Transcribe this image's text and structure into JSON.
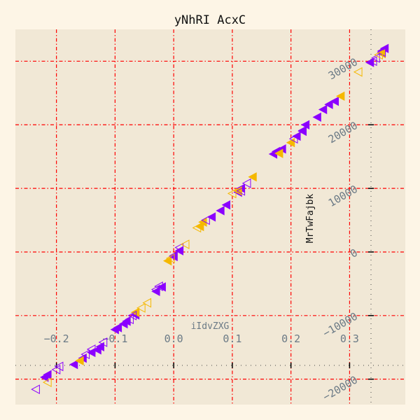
{
  "chart_data": {
    "type": "scatter",
    "title": "yNhRI AcxC",
    "xlabel": "iIdvZXG",
    "ylabel": "MrTwFajbk",
    "xlim": [
      -0.27,
      0.395
    ],
    "ylim": [
      -24000,
      35000
    ],
    "xticks": [
      -0.2,
      -0.1,
      0.0,
      0.1,
      0.2,
      0.3
    ],
    "xtick_labels": [
      "−0.2",
      "−0.1",
      "0.0",
      "0.1",
      "0.2",
      "0.3"
    ],
    "yticks": [
      -20000,
      -10000,
      0,
      10000,
      20000,
      30000
    ],
    "ytick_labels": [
      "−20000",
      "−10000",
      "0",
      "10000",
      "20000",
      "30000"
    ],
    "grid": true,
    "legend": "none",
    "colors": {
      "background": "#fdf5e6",
      "axes_background": "#f1e8d6",
      "grid": "#ff0000",
      "purple": "#8b00ff",
      "orange": "#f5b800",
      "tick_label": "#6b7a86"
    },
    "series": [
      {
        "marker": "triangle-left-filled",
        "color": "#8b00ff",
        "points": [
          [
            -0.22,
            -19700
          ],
          [
            -0.215,
            -19300
          ],
          [
            -0.17,
            -17700
          ],
          [
            -0.155,
            -16700
          ],
          [
            -0.14,
            -15800
          ],
          [
            -0.13,
            -15400
          ],
          [
            -0.125,
            -14900
          ],
          [
            -0.1,
            -12200
          ],
          [
            -0.095,
            -11900
          ],
          [
            -0.085,
            -11300
          ],
          [
            -0.08,
            -10900
          ],
          [
            -0.065,
            -9900
          ],
          [
            -0.03,
            -6200
          ],
          [
            -0.02,
            -5500
          ],
          [
            0.0,
            -600
          ],
          [
            0.01,
            200
          ],
          [
            0.065,
            5500
          ],
          [
            0.08,
            6500
          ],
          [
            0.09,
            7400
          ],
          [
            0.11,
            9400
          ],
          [
            0.115,
            10000
          ],
          [
            0.17,
            15400
          ],
          [
            0.175,
            15800
          ],
          [
            0.185,
            16200
          ],
          [
            0.21,
            18200
          ],
          [
            0.22,
            19100
          ],
          [
            0.225,
            20000
          ],
          [
            0.245,
            21200
          ],
          [
            0.255,
            22400
          ],
          [
            0.265,
            23200
          ],
          [
            0.275,
            23700
          ],
          [
            0.335,
            29800
          ],
          [
            0.355,
            31600
          ],
          [
            0.36,
            32000
          ]
        ]
      },
      {
        "marker": "triangle-left-filled",
        "color": "#f5b800",
        "points": [
          [
            -0.16,
            -17100
          ],
          [
            -0.065,
            -9500
          ],
          [
            -0.01,
            -1400
          ],
          [
            0.045,
            4000
          ],
          [
            0.05,
            4700
          ],
          [
            0.11,
            9600
          ],
          [
            0.135,
            11800
          ],
          [
            0.18,
            15500
          ],
          [
            0.2,
            17200
          ],
          [
            0.285,
            24500
          ],
          [
            0.355,
            31200
          ]
        ]
      },
      {
        "marker": "triangle-left-open",
        "color": "#8b00ff",
        "points": [
          [
            -0.235,
            -21600
          ],
          [
            -0.2,
            -18500
          ],
          [
            -0.195,
            -18000
          ],
          [
            -0.15,
            -16100
          ],
          [
            -0.14,
            -15300
          ],
          [
            -0.12,
            -14200
          ],
          [
            -0.075,
            -10600
          ],
          [
            -0.07,
            -10000
          ],
          [
            -0.03,
            -5900
          ],
          [
            -0.025,
            -5400
          ],
          [
            0.0,
            -700
          ],
          [
            0.01,
            700
          ],
          [
            0.055,
            5000
          ],
          [
            0.115,
            9600
          ],
          [
            0.125,
            10800
          ],
          [
            0.205,
            17800
          ],
          [
            0.22,
            19000
          ],
          [
            0.34,
            30000
          ],
          [
            0.345,
            30500
          ],
          [
            0.355,
            31400
          ]
        ]
      },
      {
        "marker": "triangle-left-open",
        "color": "#f5b800",
        "points": [
          [
            -0.215,
            -20500
          ],
          [
            -0.055,
            -8800
          ],
          [
            -0.045,
            -8000
          ],
          [
            -0.005,
            -1000
          ],
          [
            0.02,
            1200
          ],
          [
            0.04,
            3800
          ],
          [
            0.1,
            9200
          ],
          [
            0.315,
            28300
          ],
          [
            0.35,
            31000
          ]
        ]
      }
    ]
  }
}
